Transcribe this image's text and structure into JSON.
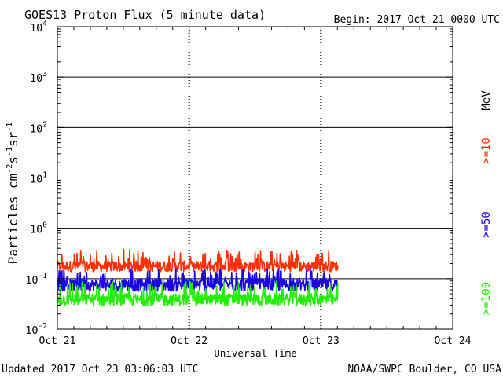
{
  "header": {
    "title": "GOES13 Proton Flux (5 minute data)",
    "begin": "Begin: 2017 Oct 21 0000 UTC"
  },
  "footer": {
    "updated": "Updated 2017 Oct 23 03:06:03 UTC",
    "credit": "NOAA/SWPC Boulder, CO USA"
  },
  "chart_data": {
    "type": "line",
    "title": "GOES13 Proton Flux (5 minute data)",
    "xlabel": "Universal Time",
    "ylabel": "Particles cm-2 s-1 sr-1",
    "yscale": "log",
    "ylim": [
      0.01,
      10000
    ],
    "xlim_hours": [
      0,
      72
    ],
    "x_ticks": [
      {
        "hour": 0,
        "label": "Oct 21"
      },
      {
        "hour": 24,
        "label": "Oct 22"
      },
      {
        "hour": 48,
        "label": "Oct 23"
      },
      {
        "hour": 72,
        "label": "Oct 24"
      }
    ],
    "y_ticks": [
      {
        "exp": -2,
        "base": "10",
        "sup": "-2"
      },
      {
        "exp": -1,
        "base": "10",
        "sup": "-1"
      },
      {
        "exp": 0,
        "base": "10",
        "sup": "0"
      },
      {
        "exp": 1,
        "base": "10",
        "sup": "1"
      },
      {
        "exp": 2,
        "base": "10",
        "sup": "2"
      },
      {
        "exp": 3,
        "base": "10",
        "sup": "3"
      },
      {
        "exp": 4,
        "base": "10",
        "sup": "4"
      }
    ],
    "threshold_line": {
      "value": 10,
      "style": "dashed"
    },
    "data_end_hour": 51.1,
    "legend_unit": "MeV",
    "series": [
      {
        "name": ">=10",
        "color": "#ff3000",
        "mean": 0.17,
        "low": 0.12,
        "high": 0.38
      },
      {
        "name": ">=50",
        "color": "#1a00e6",
        "mean": 0.072,
        "low": 0.048,
        "high": 0.16
      },
      {
        "name": ">=100",
        "color": "#22ee00",
        "mean": 0.037,
        "low": 0.025,
        "high": 0.09
      }
    ]
  }
}
